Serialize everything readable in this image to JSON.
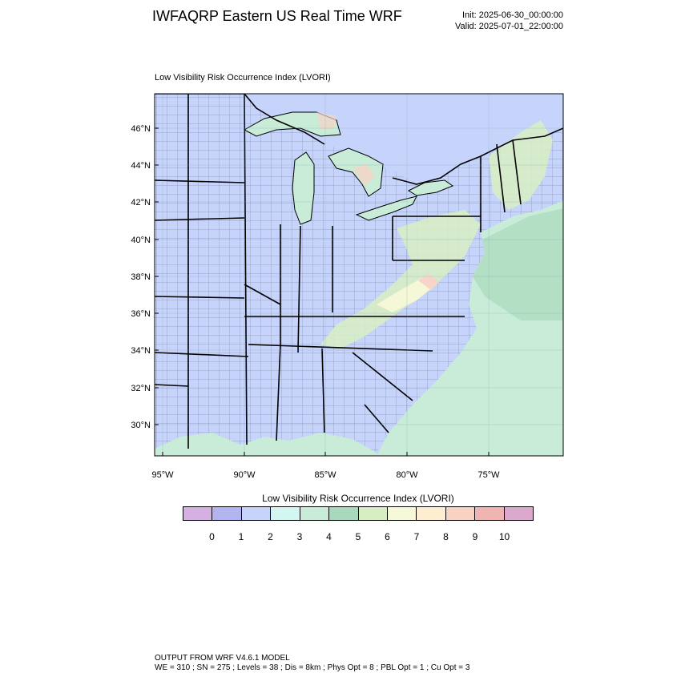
{
  "header": {
    "title": "IWFAQRP Eastern US Real Time WRF",
    "init": "Init: 2025-06-30_00:00:00",
    "valid": "Valid: 2025-07-01_22:00:00"
  },
  "map": {
    "title": "Low Visibility Risk Occurrence Index   (LVORI)",
    "lat_labels": [
      "46°N",
      "44°N",
      "42°N",
      "40°N",
      "38°N",
      "36°N",
      "34°N",
      "32°N",
      "30°N"
    ],
    "lon_labels": [
      "95°W",
      "90°W",
      "85°W",
      "80°W",
      "75°W"
    ],
    "colors": {
      "land_base": "#c6d4fb",
      "water_low": "#c8ecd8",
      "water_mid": "#b3dfc4",
      "risk_6": "#d7eec2",
      "risk_7": "#f7f9d7",
      "risk_9": "#f6d4c7",
      "border": "#000000"
    }
  },
  "colorbar": {
    "title": "Low Visibility Risk Occurrence Index  (LVORI)",
    "ticks": [
      "0",
      "1",
      "2",
      "3",
      "4",
      "5",
      "6",
      "7",
      "8",
      "9",
      "10"
    ],
    "colors": [
      "#d4b1e2",
      "#b2b3ef",
      "#c6d4fb",
      "#d3f6f3",
      "#c8ecd8",
      "#a8d8bd",
      "#d7eec2",
      "#f5f9d9",
      "#fdeed1",
      "#f8d3c4",
      "#f0b5b3",
      "#dca9ce"
    ]
  },
  "footer": {
    "line1": "OUTPUT FROM WRF V4.6.1 MODEL",
    "line2": "WE = 310 ; SN = 275 ; Levels = 38 ; Dis = 8km ; Phys Opt = 8 ; PBL Opt = 1 ; Cu Opt = 3"
  }
}
